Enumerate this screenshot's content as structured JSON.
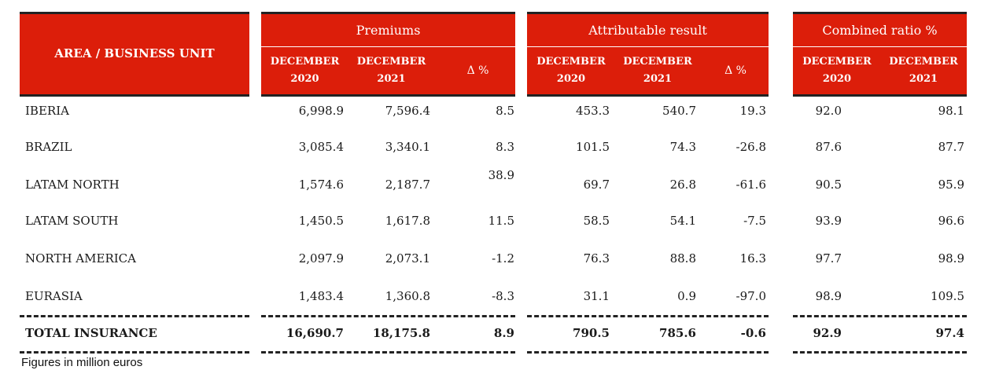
{
  "header": {
    "area_label": "AREA / BUSINESS UNIT",
    "groups": [
      {
        "title": "Premiums",
        "cols": [
          "DECEMBER\n2020",
          "DECEMBER\n2021",
          "Δ %"
        ]
      },
      {
        "title": "Attributable result",
        "cols": [
          "DECEMBER\n2020",
          "DECEMBER\n2021",
          "Δ %"
        ]
      },
      {
        "title": "Combined ratio %",
        "cols": [
          "DECEMBER\n2020",
          "DECEMBER\n2021"
        ]
      }
    ]
  },
  "rows": [
    {
      "label": "IBERIA",
      "values": [
        "6,998.9",
        "7,596.4",
        "8.5",
        "453.3",
        "540.7",
        "19.3",
        "92.0",
        "98.1"
      ]
    },
    {
      "label": "BRAZIL",
      "values": [
        "3,085.4",
        "3,340.1",
        "8.3",
        "101.5",
        "74.3",
        "-26.8",
        "87.6",
        "87.7"
      ]
    },
    {
      "label": "LATAM NORTH",
      "values": [
        "1,574.6",
        "2,187.7",
        "38.9",
        "69.7",
        "26.8",
        "-61.6",
        "90.5",
        "95.9"
      ]
    },
    {
      "label": "LATAM SOUTH",
      "values": [
        "1,450.5",
        "1,617.8",
        "11.5",
        "58.5",
        "54.1",
        "-7.5",
        "93.9",
        "96.6"
      ]
    },
    {
      "label": "NORTH AMERICA",
      "values": [
        "2,097.9",
        "2,073.1",
        "-1.2",
        "76.3",
        "88.8",
        "16.3",
        "97.7",
        "98.9"
      ]
    },
    {
      "label": "EURASIA",
      "values": [
        "1,483.4",
        "1,360.8",
        "-8.3",
        "31.1",
        "0.9",
        "-97.0",
        "98.9",
        "109.5"
      ]
    }
  ],
  "total": {
    "label": "TOTAL INSURANCE",
    "values": [
      "16,690.7",
      "18,175.8",
      "8.9",
      "790.5",
      "785.6",
      "-0.6",
      "92.9",
      "97.4"
    ]
  },
  "footnote": "Figures in million euros"
}
